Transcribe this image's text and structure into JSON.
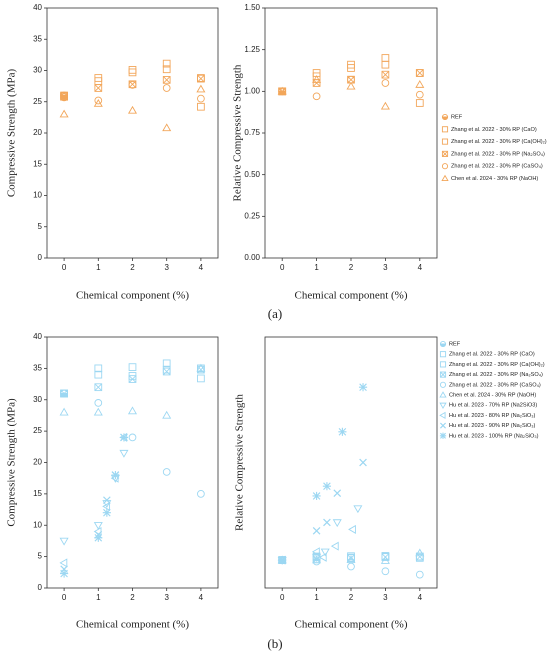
{
  "figure_labels": [
    "(a)",
    "(b)"
  ],
  "chart_data": [
    {
      "type": "scatter",
      "ylabel": "Compressive Strength (MPa)",
      "xlabel": "Chemical component (%)",
      "xlim": [
        -0.5,
        4.5
      ],
      "xticks": [
        0,
        1,
        2,
        3,
        4
      ],
      "ylim": [
        0,
        40
      ],
      "yticks": [
        0,
        5,
        10,
        15,
        20,
        25,
        30,
        35,
        40
      ],
      "series": [
        {
          "color": "#f2a65a",
          "marker": "half-circle",
          "x": [
            0
          ],
          "values": [
            26
          ]
        },
        {
          "color": "#f2a65a",
          "marker": "square",
          "x": [
            0,
            1,
            2,
            3,
            4
          ],
          "values": [
            26,
            28.8,
            30.1,
            31.1,
            24.2
          ]
        },
        {
          "color": "#f2a65a",
          "marker": "square",
          "x": [
            0,
            1,
            2,
            3,
            4
          ],
          "values": [
            25.9,
            28.3,
            29.7,
            30.2,
            28.8
          ]
        },
        {
          "color": "#f2a65a",
          "marker": "x-square",
          "x": [
            0,
            1,
            2,
            3,
            4
          ],
          "values": [
            25.8,
            27.2,
            27.8,
            28.5,
            28.7
          ]
        },
        {
          "color": "#f2a65a",
          "marker": "circle",
          "x": [
            0,
            1,
            2,
            3,
            4
          ],
          "values": [
            25.7,
            25.2,
            27.7,
            27.2,
            25.5
          ]
        },
        {
          "color": "#f2a65a",
          "marker": "triangle",
          "x": [
            0,
            1,
            2,
            3,
            4
          ],
          "values": [
            23,
            24.7,
            23.6,
            20.8,
            27
          ]
        }
      ]
    },
    {
      "type": "scatter",
      "ylabel": "Relative Compressive Strength",
      "xlabel": "Chemical component (%)",
      "xlim": [
        -0.5,
        4.5
      ],
      "xticks": [
        0,
        1,
        2,
        3,
        4
      ],
      "ylim": [
        0,
        1.5
      ],
      "yticks": [
        {
          "value": 0,
          "label": "0.00"
        },
        {
          "value": 0.25,
          "label": "0.25"
        },
        {
          "value": 0.5,
          "label": "0.50"
        },
        {
          "value": 0.75,
          "label": "0.75"
        },
        {
          "value": 1,
          "label": "1.00"
        },
        {
          "value": 1.25,
          "label": "1.25"
        },
        {
          "value": 1.5,
          "label": "1.50"
        }
      ],
      "legend": "right-outside",
      "series": [
        {
          "name": "REF",
          "color": "#f2a65a",
          "marker": "half-circle",
          "x": [
            0
          ],
          "values": [
            1
          ]
        },
        {
          "name": "Zhang et al. 2022 - 30% RP (CaO)",
          "color": "#f2a65a",
          "marker": "square",
          "x": [
            0,
            1,
            2,
            3,
            4
          ],
          "values": [
            1,
            1.11,
            1.16,
            1.2,
            0.93
          ]
        },
        {
          "name": "Zhang et al. 2022 - 30% RP (Ca(OH)₂)",
          "color": "#f2a65a",
          "marker": "square",
          "x": [
            0,
            1,
            2,
            3,
            4
          ],
          "values": [
            1,
            1.09,
            1.14,
            1.16,
            1.11
          ]
        },
        {
          "name": "Zhang et al. 2022 - 30% RP (Na₂SO₄)",
          "color": "#f2a65a",
          "marker": "x-square",
          "x": [
            0,
            1,
            2,
            3,
            4
          ],
          "values": [
            1,
            1.05,
            1.07,
            1.1,
            1.11
          ]
        },
        {
          "name": "Zhang et al. 2022 - 30% RP (CaSO₄)",
          "color": "#f2a65a",
          "marker": "circle",
          "x": [
            0,
            1,
            2,
            3,
            4
          ],
          "values": [
            1,
            0.97,
            1.07,
            1.05,
            0.98
          ]
        },
        {
          "name": "Chen et al. 2024 - 30% RP (NaOH)",
          "color": "#f2a65a",
          "marker": "triangle",
          "x": [
            0,
            1,
            2,
            3,
            4
          ],
          "values": [
            1,
            1.07,
            1.03,
            0.91,
            1.04
          ]
        }
      ]
    },
    {
      "type": "scatter",
      "ylabel": "Compressive Strength (MPa)",
      "xlabel": "Chemical component (%)",
      "xlim": [
        -0.5,
        4.5
      ],
      "xticks": [
        0,
        1,
        2,
        3,
        4
      ],
      "ylim": [
        0,
        40
      ],
      "yticks": [
        0,
        5,
        10,
        15,
        20,
        25,
        30,
        35,
        40
      ],
      "series": [
        {
          "color": "#9cd7f2",
          "marker": "half-circle",
          "x": [
            0
          ],
          "values": [
            31
          ]
        },
        {
          "color": "#9cd7f2",
          "marker": "square",
          "x": [
            0,
            1,
            2,
            3,
            4
          ],
          "values": [
            31,
            35,
            35.2,
            35.8,
            33.4
          ]
        },
        {
          "color": "#9cd7f2",
          "marker": "square",
          "x": [
            0,
            1,
            2,
            3,
            4
          ],
          "values": [
            31,
            34,
            33.8,
            34.8,
            35
          ]
        },
        {
          "color": "#9cd7f2",
          "marker": "x-square",
          "x": [
            0,
            1,
            2,
            3,
            4
          ],
          "values": [
            31,
            32,
            33.3,
            34.5,
            34.8
          ]
        },
        {
          "color": "#9cd7f2",
          "marker": "circle",
          "x": [
            0,
            1,
            2,
            3,
            4
          ],
          "values": [
            31,
            29.5,
            24,
            18.5,
            15
          ]
        },
        {
          "color": "#9cd7f2",
          "marker": "triangle",
          "x": [
            0,
            1,
            2,
            3,
            4
          ],
          "values": [
            28,
            28,
            28.2,
            27.5,
            35
          ]
        },
        {
          "color": "#9cd7f2",
          "marker": "triangle-down",
          "x": [
            0,
            1,
            1.25,
            1.5,
            1.75
          ],
          "values": [
            7.5,
            10,
            13.5,
            17.5,
            21.5
          ]
        },
        {
          "color": "#9cd7f2",
          "marker": "triangle-left",
          "x": [
            0,
            1,
            1.25,
            1.5,
            1.75
          ],
          "values": [
            4,
            9,
            13,
            17.5,
            24
          ]
        },
        {
          "color": "#9cd7f2",
          "marker": "cross",
          "x": [
            0,
            1,
            1.25,
            1.5,
            1.75
          ],
          "values": [
            3,
            8.5,
            14,
            18,
            24
          ]
        },
        {
          "color": "#9cd7f2",
          "marker": "star",
          "x": [
            0,
            1,
            1.25,
            1.5,
            1.75
          ],
          "values": [
            2.3,
            8,
            12,
            18,
            24
          ]
        }
      ]
    },
    {
      "type": "scatter",
      "ylabel": "Relative Compressive Strength",
      "xlabel": "Chemical component (%)",
      "xlim": [
        -0.5,
        4.5
      ],
      "xticks": [
        0,
        1,
        2,
        3,
        4
      ],
      "ylim": [
        0,
        9
      ],
      "legend": "right-outside",
      "series": [
        {
          "name": "REF",
          "color": "#9cd7f2",
          "marker": "half-circle",
          "x": [
            0
          ],
          "values": [
            1
          ]
        },
        {
          "name": "Zhang et al. 2022 - 30% RP (CaO)",
          "color": "#9cd7f2",
          "marker": "square",
          "x": [
            0,
            1,
            2,
            3,
            4
          ],
          "values": [
            1,
            1.13,
            1.14,
            1.15,
            1.08
          ]
        },
        {
          "name": "Zhang et al. 2022 - 30% RP (Ca(OH)₂)",
          "color": "#9cd7f2",
          "marker": "square",
          "x": [
            0,
            1,
            2,
            3,
            4
          ],
          "values": [
            1,
            1.1,
            1.09,
            1.12,
            1.13
          ]
        },
        {
          "name": "Zhang et al. 2022 - 30% RP (Na₂SO₄)",
          "color": "#9cd7f2",
          "marker": "x-square",
          "x": [
            0,
            1,
            2,
            3,
            4
          ],
          "values": [
            1,
            1.03,
            1.07,
            1.11,
            1.12
          ]
        },
        {
          "name": "Zhang et al. 2022 - 30% RP (CaSO₄)",
          "color": "#9cd7f2",
          "marker": "circle",
          "x": [
            0,
            1,
            2,
            3,
            4
          ],
          "values": [
            1,
            0.95,
            0.77,
            0.6,
            0.48
          ]
        },
        {
          "name": "Chen et al. 2024 - 30% RP (NaOH)",
          "color": "#9cd7f2",
          "marker": "triangle",
          "x": [
            0,
            1,
            2,
            3,
            4
          ],
          "values": [
            1,
            1,
            1.01,
            0.98,
            1.25
          ]
        },
        {
          "name": "Hu et al. 2023 - 70% RP (Na2SiO3)",
          "color": "#9cd7f2",
          "marker": "triangle-down",
          "x": [
            0,
            1,
            1.25,
            1.6,
            2.2
          ],
          "values": [
            1,
            1.1,
            1.3,
            2.35,
            2.85
          ]
        },
        {
          "name": "Hu et al. 2023 - 80% RP (Na₂SiO₃)",
          "color": "#9cd7f2",
          "marker": "triangle-left",
          "x": [
            0,
            1,
            1.2,
            1.55,
            2.05
          ],
          "values": [
            1,
            1.3,
            1.1,
            1.5,
            2.1
          ]
        },
        {
          "name": "Hu et al. 2023 - 90% RP (Na₂SiO₃)",
          "color": "#9cd7f2",
          "marker": "cross",
          "x": [
            0,
            1,
            1.3,
            1.6,
            2.35
          ],
          "values": [
            1,
            2.05,
            2.35,
            3.4,
            4.5
          ]
        },
        {
          "name": "Hu et al. 2023 - 100% RP (Na₂SiO₃)",
          "color": "#9cd7f2",
          "marker": "star",
          "x": [
            0,
            1,
            1.3,
            1.75,
            2.35
          ],
          "values": [
            1,
            3.3,
            3.65,
            5.6,
            7.2
          ]
        }
      ]
    }
  ]
}
